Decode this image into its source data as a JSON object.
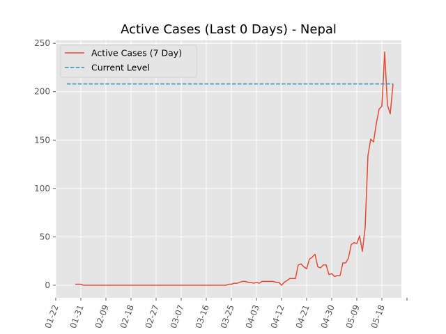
{
  "chart_data": {
    "type": "line",
    "title": "Active Cases (Last 0 Days) - Nepal",
    "xlabel": "",
    "ylabel": "",
    "grid": true,
    "legend_placement": "top-left",
    "x_tick_labels": [
      "01-22",
      "01-31",
      "02-09",
      "02-18",
      "02-27",
      "03-07",
      "03-16",
      "03-25",
      "04-03",
      "04-12",
      "04-21",
      "04-30",
      "05-09",
      "05-18"
    ],
    "y_ticks": [
      0,
      50,
      100,
      150,
      200,
      250
    ],
    "ylim": [
      -13,
      253
    ],
    "xlim": [
      "2020-01-22",
      "2020-05-25"
    ],
    "colors": {
      "series": "#e24a33",
      "reference": "#348abd",
      "plot_bg": "#e5e5e5",
      "grid": "#ffffff"
    },
    "series": [
      {
        "name": "Active Cases (7 Day)",
        "style": "solid",
        "x": [
          "2020-01-29",
          "2020-01-30",
          "2020-01-31",
          "2020-02-01",
          "2020-02-10",
          "2020-02-20",
          "2020-03-01",
          "2020-03-10",
          "2020-03-20",
          "2020-03-23",
          "2020-03-24",
          "2020-03-25",
          "2020-03-26",
          "2020-03-27",
          "2020-03-28",
          "2020-03-29",
          "2020-03-30",
          "2020-03-31",
          "2020-04-01",
          "2020-04-02",
          "2020-04-03",
          "2020-04-04",
          "2020-04-05",
          "2020-04-06",
          "2020-04-07",
          "2020-04-08",
          "2020-04-09",
          "2020-04-10",
          "2020-04-11",
          "2020-04-12",
          "2020-04-13",
          "2020-04-14",
          "2020-04-15",
          "2020-04-16",
          "2020-04-17",
          "2020-04-18",
          "2020-04-19",
          "2020-04-20",
          "2020-04-21",
          "2020-04-22",
          "2020-04-23",
          "2020-04-24",
          "2020-04-25",
          "2020-04-26",
          "2020-04-27",
          "2020-04-28",
          "2020-04-29",
          "2020-04-30",
          "2020-05-01",
          "2020-05-02",
          "2020-05-03",
          "2020-05-04",
          "2020-05-05",
          "2020-05-06",
          "2020-05-07",
          "2020-05-08",
          "2020-05-09",
          "2020-05-10",
          "2020-05-11",
          "2020-05-12",
          "2020-05-13",
          "2020-05-14",
          "2020-05-15",
          "2020-05-16",
          "2020-05-17",
          "2020-05-18",
          "2020-05-19",
          "2020-05-20",
          "2020-05-21",
          "2020-05-22"
        ],
        "y": [
          1,
          1,
          1,
          0,
          0,
          0,
          0,
          0,
          0,
          0,
          1,
          1,
          2,
          2,
          3,
          4,
          4,
          3,
          3,
          2,
          3,
          2,
          4,
          4,
          4,
          4,
          4,
          3,
          3,
          0,
          3,
          5,
          7,
          7,
          7,
          21,
          22,
          19,
          17,
          27,
          29,
          32,
          19,
          18,
          21,
          21,
          11,
          12,
          9,
          10,
          10,
          23,
          23,
          28,
          42,
          44,
          43,
          51,
          35,
          60,
          134,
          151,
          148,
          167,
          182,
          185,
          241,
          186,
          177,
          208
        ]
      },
      {
        "name": "Current Level",
        "style": "dashed",
        "x": [
          "2020-01-26",
          "2020-05-22"
        ],
        "y": [
          208,
          208
        ]
      }
    ]
  }
}
